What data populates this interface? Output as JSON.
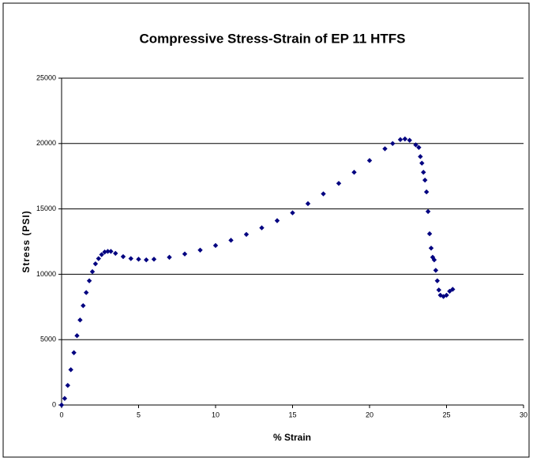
{
  "chart_data": {
    "type": "scatter",
    "title": "Compressive Stress-Strain of EP 11 HTFS",
    "x_label": "% Strain",
    "y_label": "Stress (PSI)",
    "series": [
      {
        "color": "#000080",
        "x": [
          0,
          0.2,
          0.4,
          0.6,
          0.8,
          1.0,
          1.2,
          1.4,
          1.6,
          1.8,
          2.0,
          2.2,
          2.4,
          2.6,
          2.8,
          3.0,
          3.2,
          3.5,
          4.0,
          4.5,
          5.0,
          5.5,
          6,
          7,
          8,
          9,
          10,
          11,
          12,
          13,
          14,
          15,
          16,
          17,
          18,
          19,
          20,
          21,
          21.5,
          22,
          22.3,
          22.6,
          23.0,
          23.2,
          23.3,
          23.4,
          23.5,
          23.6,
          23.7,
          23.8,
          23.9,
          24.0,
          24.1,
          24.2,
          24.3,
          24.4,
          24.5,
          24.6,
          24.8,
          25.0,
          25.2,
          25.4
        ],
        "values": [
          0,
          500,
          1500,
          2700,
          4000,
          5300,
          6500,
          7600,
          8600,
          9500,
          10200,
          10800,
          11200,
          11500,
          11700,
          11750,
          11750,
          11600,
          11350,
          11200,
          11150,
          11100,
          11150,
          11300,
          11550,
          11850,
          12200,
          12600,
          13050,
          13550,
          14100,
          14700,
          15400,
          16150,
          16950,
          17800,
          18700,
          19600,
          20000,
          20300,
          20350,
          20250,
          19900,
          19700,
          19000,
          18500,
          17800,
          17200,
          16300,
          14800,
          13100,
          12000,
          11300,
          11100,
          10300,
          9500,
          8800,
          8400,
          8300,
          8400,
          8700,
          8850
        ]
      }
    ],
    "xlim": [
      0,
      30
    ],
    "xticks": [
      0,
      5,
      10,
      15,
      20,
      25,
      30
    ],
    "ylim": [
      0,
      25000
    ],
    "yticks": [
      0,
      5000,
      10000,
      15000,
      20000,
      25000
    ],
    "grid": true
  }
}
